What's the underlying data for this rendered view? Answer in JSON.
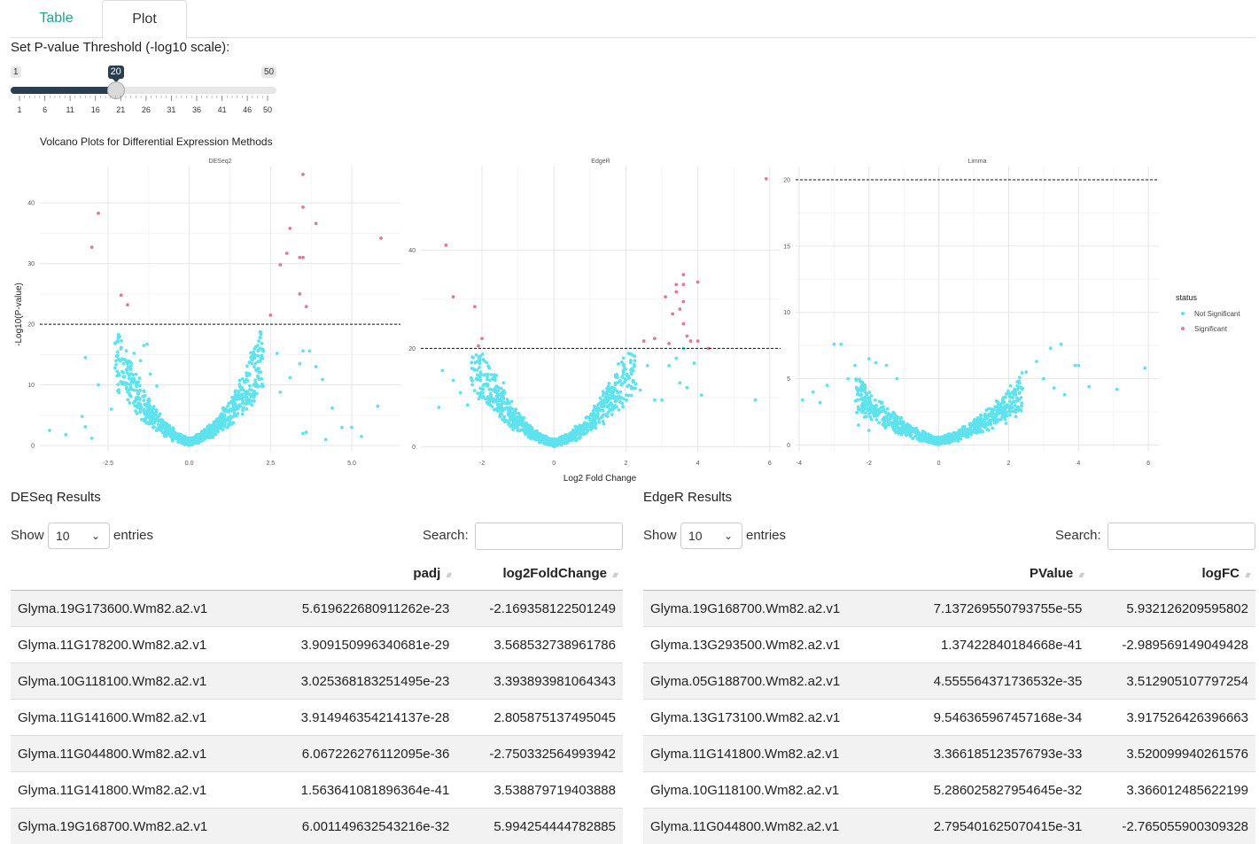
{
  "tabs": [
    {
      "label": "Table",
      "active": false
    },
    {
      "label": "Plot",
      "active": true
    }
  ],
  "slider": {
    "label": "Set P-value Threshold (-log10 scale):",
    "min": 1,
    "max": 50,
    "value": 20,
    "min_label": "1",
    "max_label": "50",
    "value_label": "20",
    "ticks": [
      "1",
      "6",
      "11",
      "16",
      "21",
      "26",
      "31",
      "36",
      "41",
      "46",
      "50"
    ],
    "fill_color": "#2b3e50"
  },
  "plot": {
    "title": "Volcano Plots for Differential Expression Methods",
    "xlabel": "Log2 Fold Change",
    "ylabel": "-Log10(P-value)",
    "legend_title": "status",
    "legend_items": [
      "Not Significant",
      "Significant"
    ],
    "colors": {
      "not_significant": "#5ee3ee",
      "significant": "#e07a9a"
    },
    "facets": [
      "DESeq2",
      "EdgeR",
      "Limma"
    ]
  },
  "chart_data": [
    {
      "type": "scatter",
      "title": "DESeq2",
      "xlim": [
        -4.6,
        6.5
      ],
      "ylim": [
        -1,
        46
      ],
      "xticks": [
        -2.5,
        0.0,
        2.5,
        5.0
      ],
      "xtick_labels": [
        "-2.5",
        "0.0",
        "2.5",
        "5.0"
      ],
      "yticks": [
        0,
        10,
        20,
        30,
        40
      ],
      "ytick_labels": [
        "0",
        "10",
        "20",
        "30",
        "40"
      ],
      "threshold": 20,
      "grid": true,
      "series": [
        {
          "name": "Significant",
          "points": [
            [
              -2.8,
              38.3
            ],
            [
              -3.0,
              32.7
            ],
            [
              -2.1,
              24.8
            ],
            [
              -1.9,
              23.2
            ],
            [
              2.5,
              21.5
            ],
            [
              2.8,
              29.8
            ],
            [
              3.0,
              31.7
            ],
            [
              3.1,
              35.8
            ],
            [
              3.4,
              31.0
            ],
            [
              3.5,
              31.0
            ],
            [
              3.5,
              44.7
            ],
            [
              3.5,
              39.3
            ],
            [
              3.9,
              36.6
            ],
            [
              3.4,
              25.0
            ],
            [
              3.6,
              22.9
            ],
            [
              5.9,
              34.2
            ]
          ]
        },
        {
          "name": "Not Significant",
          "points": [
            [
              -4.3,
              2.5
            ],
            [
              -3.8,
              1.8
            ],
            [
              -3.2,
              14.5
            ],
            [
              -3.3,
              4.8
            ],
            [
              -3.2,
              3.1
            ],
            [
              -3.0,
              1.2
            ],
            [
              -2.8,
              10.0
            ],
            [
              -2.4,
              6.0
            ],
            [
              -2.2,
              9.0
            ],
            [
              -1.9,
              13.5
            ],
            [
              -1.7,
              15.2
            ],
            [
              -1.5,
              14.0
            ],
            [
              -1.4,
              16.5
            ],
            [
              -1.3,
              16.7
            ],
            [
              -1.2,
              11.8
            ],
            [
              -1.0,
              9.8
            ],
            [
              2.0,
              13.0
            ],
            [
              2.2,
              14.4
            ],
            [
              2.7,
              15.2
            ],
            [
              2.8,
              8.8
            ],
            [
              3.1,
              11.2
            ],
            [
              3.4,
              13.5
            ],
            [
              3.5,
              15.6
            ],
            [
              3.7,
              15.6
            ],
            [
              3.9,
              13.0
            ],
            [
              4.1,
              10.9
            ],
            [
              4.4,
              6.2
            ],
            [
              5.8,
              6.5
            ],
            [
              4.7,
              3.0
            ],
            [
              5.0,
              3.0
            ],
            [
              5.3,
              1.5
            ],
            [
              4.2,
              1.0
            ],
            [
              3.5,
              2.0
            ],
            [
              3.6,
              2.2
            ]
          ]
        }
      ]
    },
    {
      "type": "scatter",
      "title": "EdgeR",
      "xlim": [
        -3.7,
        6.3
      ],
      "ylim": [
        -1,
        57
      ],
      "xticks": [
        -2,
        0,
        2,
        4,
        6
      ],
      "xtick_labels": [
        "-2",
        "0",
        "2",
        "4",
        "6"
      ],
      "yticks": [
        0,
        20,
        40
      ],
      "ytick_labels": [
        "0",
        "20",
        "40"
      ],
      "threshold": 20,
      "grid": true,
      "series": [
        {
          "name": "Significant",
          "points": [
            [
              -3.0,
              41.0
            ],
            [
              -2.8,
              30.5
            ],
            [
              -2.2,
              28.5
            ],
            [
              -2.0,
              22.0
            ],
            [
              -2.1,
              20.5
            ],
            [
              2.5,
              21.5
            ],
            [
              2.8,
              22.0
            ],
            [
              3.2,
              21.0
            ],
            [
              3.3,
              27.0
            ],
            [
              3.4,
              33.0
            ],
            [
              3.5,
              28.0
            ],
            [
              3.6,
              33.0
            ],
            [
              3.6,
              25.0
            ],
            [
              3.1,
              30.5
            ],
            [
              3.6,
              29.5
            ],
            [
              3.6,
              35.0
            ],
            [
              3.8,
              21.5
            ],
            [
              4.0,
              33.5
            ],
            [
              4.0,
              21.5
            ],
            [
              4.3,
              20.0
            ],
            [
              5.9,
              54.5
            ],
            [
              3.4,
              31.5
            ],
            [
              3.7,
              22.5
            ]
          ]
        },
        {
          "name": "Not Significant",
          "points": [
            [
              -3.1,
              15.5
            ],
            [
              -2.8,
              13.5
            ],
            [
              -2.6,
              11.0
            ],
            [
              -2.3,
              14.0
            ],
            [
              -2.4,
              8.5
            ],
            [
              -2.0,
              10.0
            ],
            [
              -3.2,
              8.0
            ],
            [
              -1.6,
              14.5
            ],
            [
              -1.8,
              16.0
            ],
            [
              -1.4,
              13.0
            ],
            [
              2.2,
              13.5
            ],
            [
              2.4,
              11.5
            ],
            [
              2.6,
              16.5
            ],
            [
              2.8,
              9.5
            ],
            [
              3.0,
              9.5
            ],
            [
              3.2,
              16.5
            ],
            [
              3.4,
              18.0
            ],
            [
              3.6,
              20.0
            ],
            [
              3.9,
              17.0
            ],
            [
              4.1,
              10.5
            ],
            [
              5.6,
              9.5
            ],
            [
              3.5,
              13.0
            ],
            [
              3.7,
              12.0
            ]
          ]
        }
      ]
    },
    {
      "type": "scatter",
      "title": "Limma",
      "xlim": [
        -4.1,
        6.3
      ],
      "ylim": [
        -0.5,
        21
      ],
      "xticks": [
        -4,
        -2,
        0,
        2,
        4,
        6
      ],
      "xtick_labels": [
        "-4",
        "-2",
        "0",
        "2",
        "4",
        "6"
      ],
      "yticks": [
        0,
        5,
        10,
        15,
        20
      ],
      "ytick_labels": [
        "0",
        "5",
        "10",
        "15",
        "20"
      ],
      "threshold": 20,
      "grid": true,
      "series": [
        {
          "name": "Significant",
          "points": []
        },
        {
          "name": "Not Significant",
          "points": [
            [
              -3.6,
              4.0
            ],
            [
              -3.2,
              4.5
            ],
            [
              -3.0,
              7.6
            ],
            [
              -2.8,
              7.6
            ],
            [
              -2.6,
              5.0
            ],
            [
              -2.4,
              6.0
            ],
            [
              -3.9,
              3.4
            ],
            [
              -3.4,
              3.2
            ],
            [
              -2.0,
              6.5
            ],
            [
              -1.8,
              6.2
            ],
            [
              -1.5,
              6.0
            ],
            [
              -1.2,
              5.0
            ],
            [
              -2.3,
              1.5
            ],
            [
              -2.0,
              1.1
            ],
            [
              -1.3,
              1.2
            ],
            [
              2.5,
              5.5
            ],
            [
              2.8,
              6.3
            ],
            [
              3.0,
              5.0
            ],
            [
              3.2,
              7.3
            ],
            [
              3.5,
              7.6
            ],
            [
              3.9,
              6.0
            ],
            [
              4.3,
              4.4
            ],
            [
              5.1,
              4.2
            ],
            [
              5.9,
              5.8
            ],
            [
              3.3,
              4.3
            ],
            [
              3.6,
              3.8
            ],
            [
              4.0,
              6.0
            ],
            [
              2.2,
              3.8
            ]
          ]
        }
      ]
    }
  ],
  "deseq": {
    "title": "DESeq Results",
    "show_label": "Show",
    "entries_value": "10",
    "entries_label": "entries",
    "search_label": "Search:",
    "columns": [
      "",
      "padj",
      "log2FoldChange"
    ],
    "rows": [
      [
        "Glyma.19G173600.Wm82.a2.v1",
        "5.619622680911262e-23",
        "-2.169358122501249"
      ],
      [
        "Glyma.11G178200.Wm82.a2.v1",
        "3.909150996340681e-29",
        "3.568532738961786"
      ],
      [
        "Glyma.10G118100.Wm82.a2.v1",
        "3.025368183251495e-23",
        "3.393893981064343"
      ],
      [
        "Glyma.11G141600.Wm82.a2.v1",
        "3.914946354214137e-28",
        "2.805875137495045"
      ],
      [
        "Glyma.11G044800.Wm82.a2.v1",
        "6.067226276112095e-36",
        "-2.750332564993942"
      ],
      [
        "Glyma.11G141800.Wm82.a2.v1",
        "1.563641081896364e-41",
        "3.538879719403888"
      ],
      [
        "Glyma.19G168700.Wm82.a2.v1",
        "6.001149632543216e-32",
        "5.994254444782885"
      ]
    ]
  },
  "edger": {
    "title": "EdgeR Results",
    "show_label": "Show",
    "entries_value": "10",
    "entries_label": "entries",
    "search_label": "Search:",
    "columns": [
      "",
      "PValue",
      "logFC"
    ],
    "rows": [
      [
        "Glyma.19G168700.Wm82.a2.v1",
        "7.137269550793755e-55",
        "5.932126209595802"
      ],
      [
        "Glyma.13G293500.Wm82.a2.v1",
        "1.37422840184668e-41",
        "-2.989569149049428"
      ],
      [
        "Glyma.05G188700.Wm82.a2.v1",
        "4.555564371736532e-35",
        "3.512905107797254"
      ],
      [
        "Glyma.13G173100.Wm82.a2.v1",
        "9.546365967457168e-34",
        "3.917526426396663"
      ],
      [
        "Glyma.11G141800.Wm82.a2.v1",
        "3.366185123576793e-33",
        "3.520099940261576"
      ],
      [
        "Glyma.10G118100.Wm82.a2.v1",
        "5.286025827954645e-32",
        "3.366012485622199"
      ],
      [
        "Glyma.11G044800.Wm82.a2.v1",
        "2.795401625070415e-31",
        "-2.765055900309328"
      ]
    ]
  }
}
